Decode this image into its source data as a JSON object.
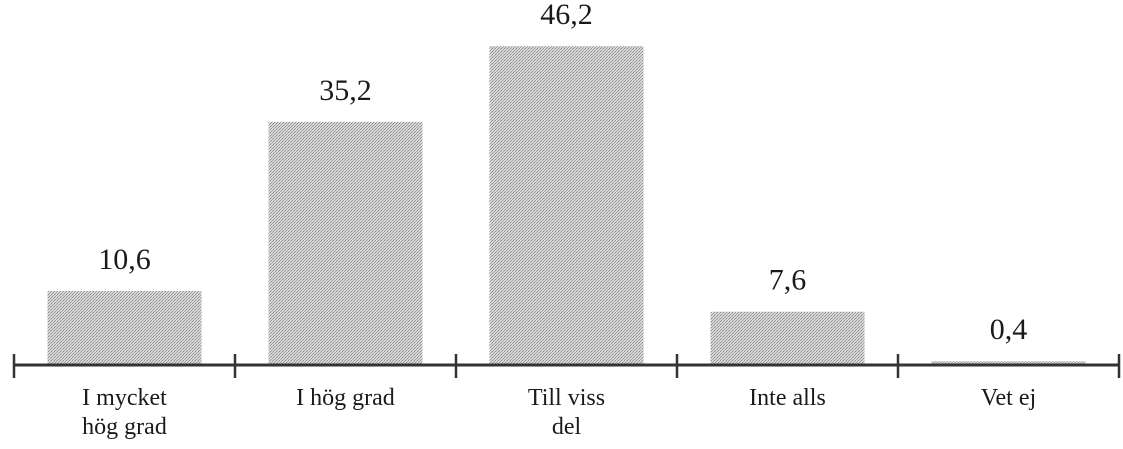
{
  "chart_data": {
    "type": "bar",
    "categories": [
      [
        "I mycket",
        "hög grad"
      ],
      [
        "I hög grad"
      ],
      [
        "Till viss",
        "del"
      ],
      [
        "Inte alls"
      ],
      [
        "Vet ej"
      ]
    ],
    "values": [
      10.6,
      35.2,
      46.2,
      7.6,
      0.4
    ],
    "value_labels": [
      "10,6",
      "35,2",
      "46,2",
      "7,6",
      "0,4"
    ],
    "title": "",
    "xlabel": "",
    "ylabel": "",
    "ylim": [
      0,
      50
    ],
    "grid": false,
    "legend": "none",
    "bar_color": "#c8c8c8",
    "bar_pattern": "stippled"
  }
}
